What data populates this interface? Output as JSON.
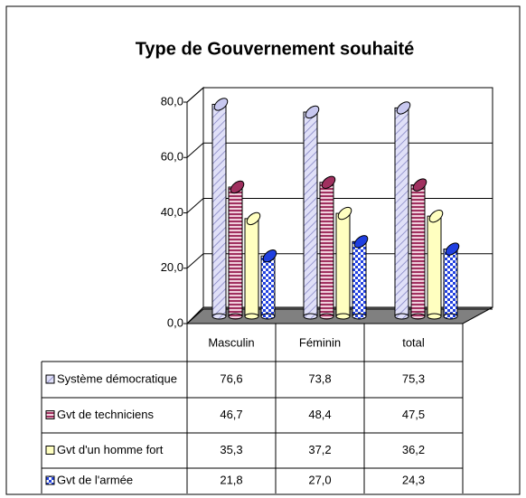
{
  "chart_data": {
    "type": "bar3d",
    "title": "Type de Gouvernement souhaité",
    "categories": [
      "Masculin",
      "Féminin",
      "total"
    ],
    "series": [
      {
        "name": "Système démocratique",
        "color": "#c8c8f0",
        "values": [
          76.6,
          73.8,
          75.3
        ],
        "value_labels": [
          "76,6",
          "73,8",
          "75,3"
        ]
      },
      {
        "name": "Gvt de techniciens",
        "color": "#a0305f",
        "values": [
          46.7,
          48.4,
          47.5
        ],
        "value_labels": [
          "46,7",
          "48,4",
          "47,5"
        ]
      },
      {
        "name": "Gvt d'un homme fort",
        "color": "#ffffc0",
        "values": [
          35.3,
          37.2,
          36.2
        ],
        "value_labels": [
          "35,3",
          "37,2",
          "36,2"
        ]
      },
      {
        "name": "Gvt de l'armée",
        "color": "#1f3fe0",
        "values": [
          21.8,
          27.0,
          24.3
        ],
        "value_labels": [
          "21,8",
          "27,0",
          "24,3"
        ]
      }
    ],
    "ylim": [
      0,
      80
    ],
    "yticks": [
      {
        "value": 0,
        "label": "0,0"
      },
      {
        "value": 20,
        "label": "20,0"
      },
      {
        "value": 40,
        "label": "40,0"
      },
      {
        "value": 60,
        "label": "60,0"
      },
      {
        "value": 80,
        "label": "80,0"
      }
    ],
    "grid": true
  }
}
